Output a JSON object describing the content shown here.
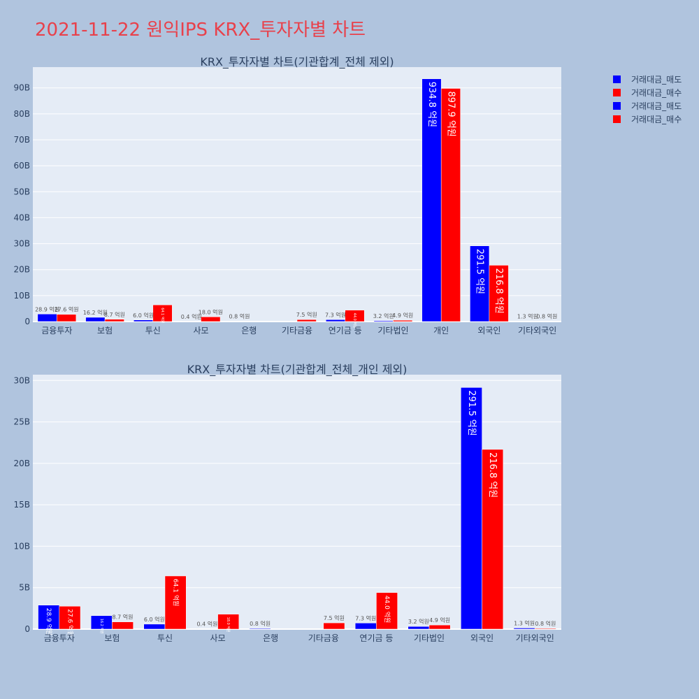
{
  "title": "2021-11-22 원익IPS KRX_투자자별 차트",
  "colors": {
    "sell": "#0000ff",
    "buy": "#ff0000",
    "plot_bg": "#e5ecf6",
    "page_bg": "#b0c4de"
  },
  "legend": [
    {
      "name": "거래대금_매도",
      "color": "#0000ff"
    },
    {
      "name": "거래대금_매수",
      "color": "#ff0000"
    },
    {
      "name": "거래대금_매도",
      "color": "#0000ff"
    },
    {
      "name": "거래대금_매수",
      "color": "#ff0000"
    }
  ],
  "chart_data": [
    {
      "type": "bar",
      "title": "KRX_투자자별 차트(기관합계_전체 제외)",
      "categories": [
        "금융투자",
        "보험",
        "투신",
        "사모",
        "은행",
        "기타금융",
        "연기금 등",
        "기타법인",
        "개인",
        "외국인",
        "기타외국인"
      ],
      "y_ticks": [
        "0",
        "10B",
        "20B",
        "30B",
        "40B",
        "50B",
        "60B",
        "70B",
        "80B",
        "90B"
      ],
      "ylim": [
        0,
        98
      ],
      "series": [
        {
          "name": "거래대금_매도",
          "values": [
            2.89,
            1.62,
            0.6,
            0.04,
            0.08,
            0.0,
            0.73,
            0.32,
            93.48,
            29.15,
            0.13
          ],
          "labels": [
            "28.9 억원",
            "16.2 억원",
            "6.0 억원",
            "0.4 억원",
            "0.8 억원",
            "",
            "7.3 억원",
            "3.2 억원",
            "934.8 억원",
            "291.5 억원",
            "1.3 억원"
          ]
        },
        {
          "name": "거래대금_매수",
          "values": [
            2.76,
            0.87,
            6.41,
            1.8,
            0.0,
            0.75,
            4.4,
            0.49,
            89.79,
            21.68,
            0.08
          ],
          "labels": [
            "27.6 억원",
            "8.7 억원",
            "64.1 억원",
            "18.0 억원",
            "",
            "7.5 억원",
            "44.0 억원",
            "4.9 억원",
            "897.9 억원",
            "216.8 억원",
            "0.8 억원"
          ]
        }
      ]
    },
    {
      "type": "bar",
      "title": "KRX_투자자별 차트(기관합계_전체_개인 제외)",
      "categories": [
        "금융투자",
        "보험",
        "투신",
        "사모",
        "은행",
        "기타금융",
        "연기금 등",
        "기타법인",
        "외국인",
        "기타외국인"
      ],
      "y_ticks": [
        "0",
        "5B",
        "10B",
        "15B",
        "20B",
        "25B",
        "30B"
      ],
      "ylim": [
        0,
        30.7
      ],
      "series": [
        {
          "name": "거래대금_매도",
          "values": [
            2.89,
            1.62,
            0.6,
            0.04,
            0.08,
            0.0,
            0.73,
            0.32,
            29.15,
            0.13
          ],
          "labels": [
            "28.9 억원",
            "16.2 억원",
            "6.0 억원",
            "0.4 억원",
            "0.8 억원",
            "",
            "7.3 억원",
            "3.2 억원",
            "291.5 억원",
            "1.3 억원"
          ]
        },
        {
          "name": "거래대금_매수",
          "values": [
            2.76,
            0.87,
            6.41,
            1.8,
            0.0,
            0.75,
            4.4,
            0.49,
            21.68,
            0.08
          ],
          "labels": [
            "27.6 억원",
            "8.7 억원",
            "64.1 억원",
            "18.0 억원",
            "",
            "7.5 억원",
            "44.0 억원",
            "4.9 억원",
            "216.8 억원",
            "0.8 억원"
          ]
        }
      ]
    }
  ]
}
